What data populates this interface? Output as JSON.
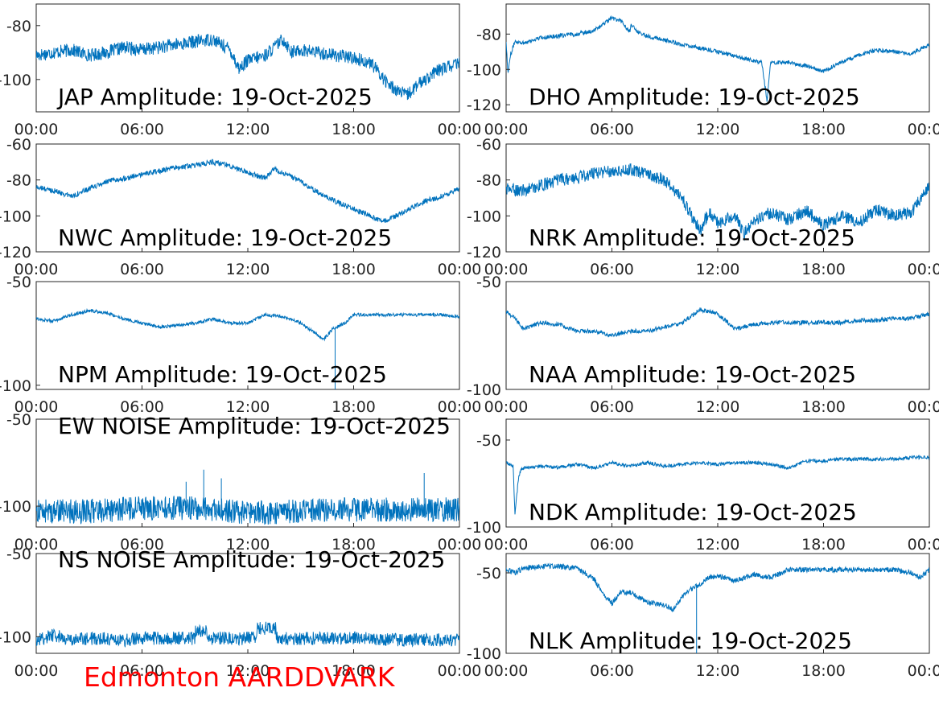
{
  "line_color": "#0072bd",
  "footer": {
    "label": "Edmonton AARDDVARK",
    "color": "#ff0000"
  },
  "chart_data": [
    {
      "type": "line",
      "title": "JAP Amplitude: 19-Oct-2025",
      "xticks": [
        "00:00",
        "06:00",
        "12:00",
        "18:00",
        "00:00"
      ],
      "yticks": [
        "-80",
        "-100"
      ],
      "ylim": [
        -112,
        -72
      ],
      "x": [
        0,
        1,
        2,
        3,
        4,
        5,
        6,
        7,
        8,
        9,
        10,
        11,
        11.5,
        12,
        13,
        14,
        14.5,
        15,
        16,
        17,
        18,
        19,
        20,
        21,
        22,
        23,
        24
      ],
      "values": [
        -91,
        -90,
        -89,
        -91,
        -90,
        -88,
        -89,
        -88,
        -87,
        -86,
        -85,
        -89,
        -96,
        -93,
        -91,
        -85,
        -90,
        -89,
        -90,
        -91,
        -92,
        -94,
        -102,
        -106,
        -100,
        -96,
        -94
      ],
      "noise": 2.5
    },
    {
      "type": "line",
      "title": "DHO Amplitude: 19-Oct-2025",
      "xticks": [
        "00:00",
        "06:00",
        "12:00",
        "18:00",
        "00:00"
      ],
      "yticks": [
        "-80",
        "-100",
        "-120"
      ],
      "ylim": [
        -124,
        -63
      ],
      "x": [
        0,
        0.1,
        0.25,
        0.5,
        1,
        2,
        3,
        4,
        5,
        6,
        6.3,
        6.5,
        7,
        7.1,
        7.5,
        8,
        10,
        12,
        14,
        14.5,
        14.8,
        15,
        16,
        17,
        18,
        19,
        20,
        21,
        22,
        23,
        24
      ],
      "values": [
        -84,
        -102,
        -92,
        -84,
        -85,
        -82,
        -81,
        -80,
        -78,
        -71,
        -72,
        -72,
        -79,
        -75,
        -79,
        -81,
        -86,
        -90,
        -95,
        -96,
        -118,
        -96,
        -96,
        -98,
        -101,
        -96,
        -92,
        -89,
        -90,
        -91,
        -86
      ],
      "noise": 1.2
    },
    {
      "type": "line",
      "title": "NWC Amplitude: 19-Oct-2025",
      "xticks": [
        "00:00",
        "06:00",
        "12:00",
        "18:00",
        "00:00"
      ],
      "yticks": [
        "-60",
        "-80",
        "-100",
        "-120"
      ],
      "ylim": [
        -120,
        -60
      ],
      "x": [
        0,
        1,
        2,
        3,
        4,
        5,
        6,
        7,
        8,
        9,
        10,
        11,
        12,
        13,
        13.5,
        14,
        15,
        16,
        17,
        18,
        19,
        19.5,
        20,
        21,
        22,
        23,
        24
      ],
      "values": [
        -84,
        -86,
        -89,
        -85,
        -81,
        -79,
        -77,
        -75,
        -73,
        -72,
        -70,
        -72,
        -76,
        -79,
        -74,
        -76,
        -81,
        -87,
        -92,
        -96,
        -100,
        -103,
        -102,
        -97,
        -92,
        -89,
        -85
      ],
      "noise": 1.5
    },
    {
      "type": "line",
      "title": "NRK Amplitude: 19-Oct-2025",
      "xticks": [
        "00:00",
        "06:00",
        "12:00",
        "18:00",
        "00:00"
      ],
      "yticks": [
        "-60",
        "-80",
        "-100",
        "-120"
      ],
      "ylim": [
        -120,
        -60
      ],
      "x": [
        0,
        1,
        2,
        3,
        4,
        5,
        6,
        7,
        8,
        9,
        10,
        10.5,
        11,
        11.5,
        12,
        13,
        13.5,
        14,
        15,
        16,
        17,
        18,
        19,
        20,
        21,
        22,
        23,
        24
      ],
      "values": [
        -85,
        -86,
        -83,
        -80,
        -79,
        -76,
        -75,
        -74,
        -77,
        -80,
        -90,
        -100,
        -108,
        -98,
        -104,
        -100,
        -110,
        -103,
        -98,
        -102,
        -97,
        -105,
        -100,
        -104,
        -96,
        -100,
        -98,
        -83
      ],
      "noise": 3.5
    },
    {
      "type": "line",
      "title": "NPM Amplitude: 19-Oct-2025",
      "xticks": [
        "00:00",
        "06:00",
        "12:00",
        "18:00",
        "00:00"
      ],
      "yticks": [
        "-50",
        "-100"
      ],
      "ylim": [
        -102,
        -50
      ],
      "x": [
        0,
        1,
        2,
        3,
        4,
        5,
        6,
        7,
        8,
        9,
        10,
        11,
        12,
        13,
        14,
        15,
        16,
        16.3,
        16.8,
        17,
        17.5,
        18,
        19,
        20,
        21,
        22,
        23,
        24
      ],
      "values": [
        -68,
        -69,
        -66,
        -64,
        -65,
        -68,
        -70,
        -72,
        -71,
        -70,
        -68,
        -70,
        -70,
        -66,
        -67,
        -70,
        -76,
        -78,
        -73,
        -72,
        -70,
        -66,
        -66,
        -66,
        -66,
        -66,
        -66,
        -67
      ],
      "noise": 0.8,
      "spikes": [
        [
          16.95,
          -102
        ]
      ]
    },
    {
      "type": "line",
      "title": "NAA Amplitude: 19-Oct-2025",
      "xticks": [
        "00:00",
        "06:00",
        "12:00",
        "18:00",
        "00:00"
      ],
      "yticks": [
        "-50",
        "-100"
      ],
      "ylim": [
        -100,
        -50
      ],
      "x": [
        0,
        0.5,
        1,
        2,
        3,
        4,
        5,
        6,
        7,
        8,
        9,
        10,
        11,
        12,
        13,
        14,
        15,
        16,
        17,
        18,
        19,
        20,
        21,
        22,
        23,
        24
      ],
      "values": [
        -64,
        -67,
        -72,
        -69,
        -70,
        -73,
        -73,
        -75,
        -73,
        -73,
        -71,
        -69,
        -63,
        -65,
        -72,
        -70,
        -69,
        -69,
        -69,
        -69,
        -69,
        -68,
        -68,
        -67,
        -67,
        -65
      ],
      "noise": 1.0
    },
    {
      "type": "line",
      "title": "EW NOISE Amplitude: 19-Oct-2025",
      "xticks": [
        "00:00",
        "06:00",
        "12:00",
        "18:00",
        "00:00"
      ],
      "yticks": [
        "-50",
        "-100"
      ],
      "ylim": [
        -112,
        -50
      ],
      "x": [
        0,
        3,
        6,
        9,
        12,
        15,
        18,
        21,
        24
      ],
      "values": [
        -103,
        -103,
        -101,
        -101,
        -104,
        -103,
        -102,
        -102,
        -102
      ],
      "noise": 7.0,
      "spikes": [
        [
          8.5,
          -86
        ],
        [
          9.5,
          -79
        ],
        [
          10.5,
          -84
        ],
        [
          22,
          -81
        ]
      ]
    },
    {
      "type": "line",
      "title": "NDK Amplitude: 19-Oct-2025",
      "xticks": [
        "00:00",
        "06:00",
        "12:00",
        "18:00",
        "00:00"
      ],
      "yticks": [
        "-50",
        "-100"
      ],
      "ylim": [
        -100,
        -38
      ],
      "x": [
        0,
        0.4,
        0.5,
        0.7,
        0.8,
        1,
        2,
        3,
        4,
        5,
        6,
        7,
        8,
        9,
        10,
        11,
        12,
        13,
        14,
        15,
        16,
        17,
        18,
        19,
        20,
        21,
        22,
        23,
        24
      ],
      "values": [
        -63,
        -65,
        -93,
        -72,
        -68,
        -66,
        -65,
        -66,
        -64,
        -66,
        -63,
        -65,
        -63,
        -65,
        -64,
        -63,
        -64,
        -63,
        -63,
        -64,
        -66,
        -62,
        -62,
        -61,
        -61,
        -61,
        -61,
        -60,
        -60
      ],
      "noise": 1.0
    },
    {
      "type": "line",
      "title": "NS NOISE Amplitude: 19-Oct-2025",
      "xticks": [
        "00:00",
        "06:00",
        "12:00",
        "18:00",
        "00:00"
      ],
      "yticks": [
        "-50",
        "-100"
      ],
      "ylim": [
        -110,
        -50
      ],
      "x": [
        0,
        1,
        2,
        3,
        4,
        5,
        6,
        7,
        8,
        9,
        9.01,
        9.7,
        9.71,
        12.5,
        12.51,
        13.6,
        13.61,
        15,
        18,
        21,
        24
      ],
      "values": [
        -102,
        -99,
        -102,
        -101,
        -101,
        -102,
        -101,
        -101,
        -101,
        -101,
        -97,
        -97,
        -101,
        -101,
        -95,
        -95,
        -101,
        -101,
        -101,
        -102,
        -102
      ],
      "noise": 4.0
    },
    {
      "type": "line",
      "title": "NLK Amplitude: 19-Oct-2025",
      "xticks": [
        "00:00",
        "06:00",
        "12:00",
        "18:00",
        "00:00"
      ],
      "yticks": [
        "-50",
        "-100"
      ],
      "ylim": [
        -100,
        -38
      ],
      "x": [
        0,
        0.5,
        1,
        2,
        3,
        4,
        5,
        5.5,
        6,
        6.5,
        7,
        8,
        9,
        9.5,
        10,
        10.5,
        11,
        11.5,
        12,
        13,
        14,
        15,
        16,
        17,
        18,
        19,
        20,
        21,
        22,
        23,
        23.5,
        24
      ],
      "values": [
        -48,
        -50,
        -47,
        -46,
        -46,
        -47,
        -54,
        -63,
        -69,
        -62,
        -62,
        -68,
        -70,
        -73,
        -65,
        -60,
        -57,
        -53,
        -52,
        -55,
        -51,
        -53,
        -48,
        -48,
        -48,
        -48,
        -48,
        -48,
        -48,
        -50,
        -53,
        -48
      ],
      "noise": 1.6,
      "spikes": [
        [
          10.8,
          -100
        ]
      ]
    }
  ]
}
